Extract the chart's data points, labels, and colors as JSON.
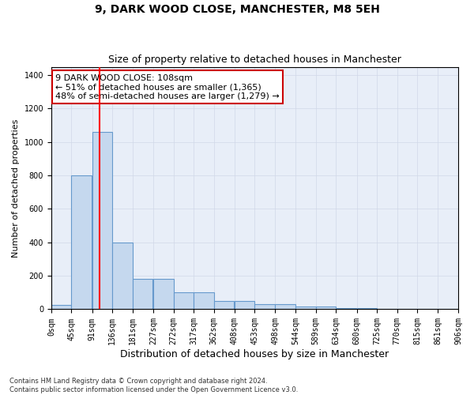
{
  "title": "9, DARK WOOD CLOSE, MANCHESTER, M8 5EH",
  "subtitle": "Size of property relative to detached houses in Manchester",
  "xlabel": "Distribution of detached houses by size in Manchester",
  "ylabel": "Number of detached properties",
  "footnote": "Contains HM Land Registry data © Crown copyright and database right 2024.\nContains public sector information licensed under the Open Government Licence v3.0.",
  "bar_left_edges": [
    0,
    45,
    91,
    136,
    181,
    227,
    272,
    317,
    362,
    408,
    453,
    498,
    544,
    589,
    634,
    680,
    725,
    770,
    815,
    861
  ],
  "bar_heights": [
    25,
    800,
    1060,
    400,
    180,
    180,
    100,
    100,
    50,
    50,
    30,
    30,
    15,
    15,
    5,
    5,
    2,
    2,
    1,
    1
  ],
  "bin_width": 45,
  "bar_color": "#c5d8ee",
  "bar_edge_color": "#6699cc",
  "red_line_x": 108,
  "annotation_text": "9 DARK WOOD CLOSE: 108sqm\n← 51% of detached houses are smaller (1,365)\n48% of semi-detached houses are larger (1,279) →",
  "annotation_box_color": "#ffffff",
  "annotation_box_edge_color": "#cc0000",
  "ylim": [
    0,
    1450
  ],
  "yticks": [
    0,
    200,
    400,
    600,
    800,
    1000,
    1200,
    1400
  ],
  "xtick_labels": [
    "0sqm",
    "45sqm",
    "91sqm",
    "136sqm",
    "181sqm",
    "227sqm",
    "272sqm",
    "317sqm",
    "362sqm",
    "408sqm",
    "453sqm",
    "498sqm",
    "544sqm",
    "589sqm",
    "634sqm",
    "680sqm",
    "725sqm",
    "770sqm",
    "815sqm",
    "861sqm",
    "906sqm"
  ],
  "grid_color": "#d0d8e8",
  "bg_color": "#e8eef8",
  "fig_bg_color": "#ffffff",
  "title_fontsize": 10,
  "subtitle_fontsize": 9,
  "annot_fontsize": 8,
  "ylabel_fontsize": 8,
  "xlabel_fontsize": 9,
  "tick_fontsize": 7,
  "footnote_fontsize": 6
}
